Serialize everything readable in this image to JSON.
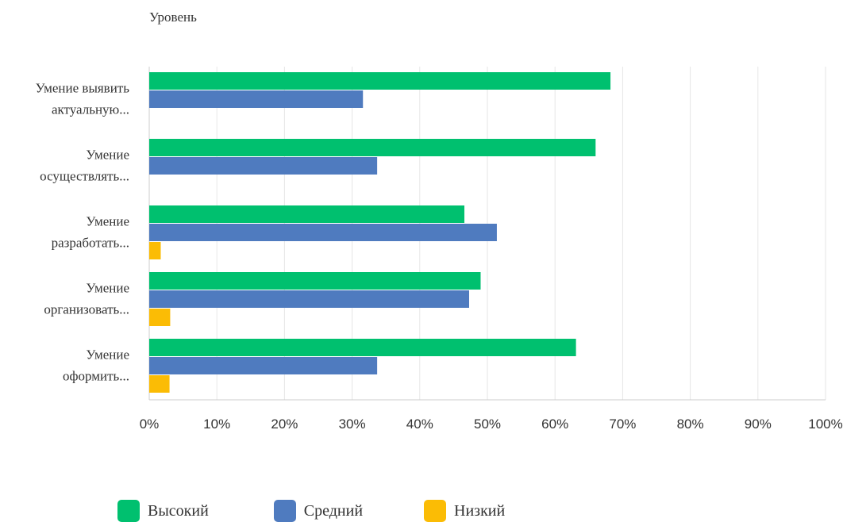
{
  "chart_data": {
    "type": "bar",
    "orientation": "horizontal",
    "title": "Уровень",
    "categories": [
      [
        "Умение выявить",
        "актуальную..."
      ],
      [
        "Умение",
        "осуществлять..."
      ],
      [
        "Умение",
        "разработать..."
      ],
      [
        "Умение",
        "организовать..."
      ],
      [
        "Умение",
        "оформить..."
      ]
    ],
    "series": [
      {
        "name": "Высокий",
        "color": "#00c06f",
        "values": [
          68.2,
          66.0,
          46.6,
          49.0,
          63.1
        ]
      },
      {
        "name": "Средний",
        "color": "#4f7bbf",
        "values": [
          31.6,
          33.7,
          51.4,
          47.3,
          33.7
        ]
      },
      {
        "name": "Низкий",
        "color": "#fbbc05",
        "values": [
          0,
          0,
          1.7,
          3.1,
          3.0
        ]
      }
    ],
    "xlim": [
      0,
      100
    ],
    "x_ticks": [
      "0%",
      "10%",
      "20%",
      "30%",
      "40%",
      "50%",
      "60%",
      "70%",
      "80%",
      "90%",
      "100%"
    ],
    "grid": true,
    "legend_position": "bottom"
  }
}
